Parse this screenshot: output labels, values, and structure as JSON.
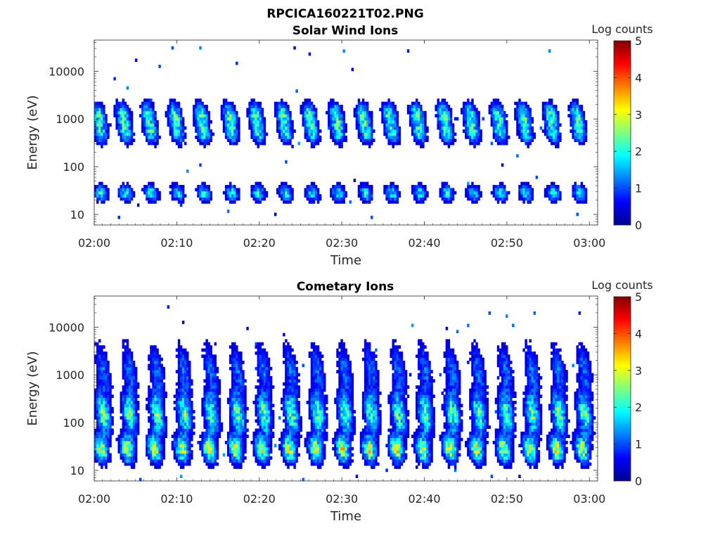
{
  "figure": {
    "filename_title": "RPCICA160221T02.PNG"
  },
  "chart_data": [
    {
      "type": "heatmap",
      "title": "Solar Wind Ions",
      "xlabel": "Time",
      "ylabel": "Energy (eV)",
      "x_ticks": [
        "02:00",
        "02:10",
        "02:20",
        "02:30",
        "02:40",
        "02:50",
        "03:00"
      ],
      "x_range_minutes": [
        0,
        61
      ],
      "y_scale": "log",
      "y_ticks": [
        10,
        100,
        1000,
        10000
      ],
      "y_tick_labels": [
        "10",
        "100",
        "1000",
        "10000"
      ],
      "y_range": [
        6,
        45000
      ],
      "colorbar": {
        "label": "Log counts",
        "ticks": [
          "0",
          "1",
          "2",
          "3",
          "4",
          "5"
        ],
        "range": [
          0,
          5
        ],
        "colormap": "jet"
      },
      "pulse_times_min": [
        0.5,
        3.5,
        6.6,
        9.8,
        13.0,
        16.4,
        19.6,
        22.9,
        26.1,
        29.3,
        32.6,
        35.8,
        39.1,
        42.4,
        45.6,
        48.9,
        52.0,
        55.3,
        58.5
      ],
      "bands": [
        {
          "name": "high",
          "energy_center_eV": 1200,
          "spread_decades": 0.18,
          "peak_log_counts": 2.2
        },
        {
          "name": "mid",
          "energy_center_eV": 500,
          "spread_decades": 0.15,
          "peak_log_counts": 1.8
        },
        {
          "name": "low",
          "energy_center_eV": 28,
          "spread_decades": 0.12,
          "peak_log_counts": 1.9
        }
      ]
    },
    {
      "type": "heatmap",
      "title": "Cometary Ions",
      "xlabel": "Time",
      "ylabel": "Energy (eV)",
      "x_ticks": [
        "02:00",
        "02:10",
        "02:20",
        "02:30",
        "02:40",
        "02:50",
        "03:00"
      ],
      "x_range_minutes": [
        0,
        61
      ],
      "y_scale": "log",
      "y_ticks": [
        10,
        100,
        1000,
        10000
      ],
      "y_tick_labels": [
        "10",
        "100",
        "1000",
        "10000"
      ],
      "y_range": [
        6,
        45000
      ],
      "colorbar": {
        "label": "Log counts",
        "ticks": [
          "0",
          "1",
          "2",
          "3",
          "4",
          "5"
        ],
        "range": [
          0,
          5
        ],
        "colormap": "jet"
      },
      "pulse_times_min": [
        0.8,
        4.0,
        7.3,
        10.6,
        13.9,
        17.1,
        20.3,
        23.6,
        26.8,
        30.1,
        33.3,
        36.6,
        39.8,
        43.1,
        46.3,
        49.6,
        52.8,
        56.0,
        59.1
      ],
      "bands": [
        {
          "name": "low",
          "energy_center_eV": 28,
          "spread_decades": 0.2,
          "peak_log_counts": 2.9
        },
        {
          "name": "mid",
          "energy_center_eV": 150,
          "spread_decades": 0.3,
          "peak_log_counts": 2.4
        },
        {
          "name": "high",
          "energy_center_eV": 1200,
          "spread_decades": 0.4,
          "peak_log_counts": 1.2
        }
      ]
    }
  ]
}
